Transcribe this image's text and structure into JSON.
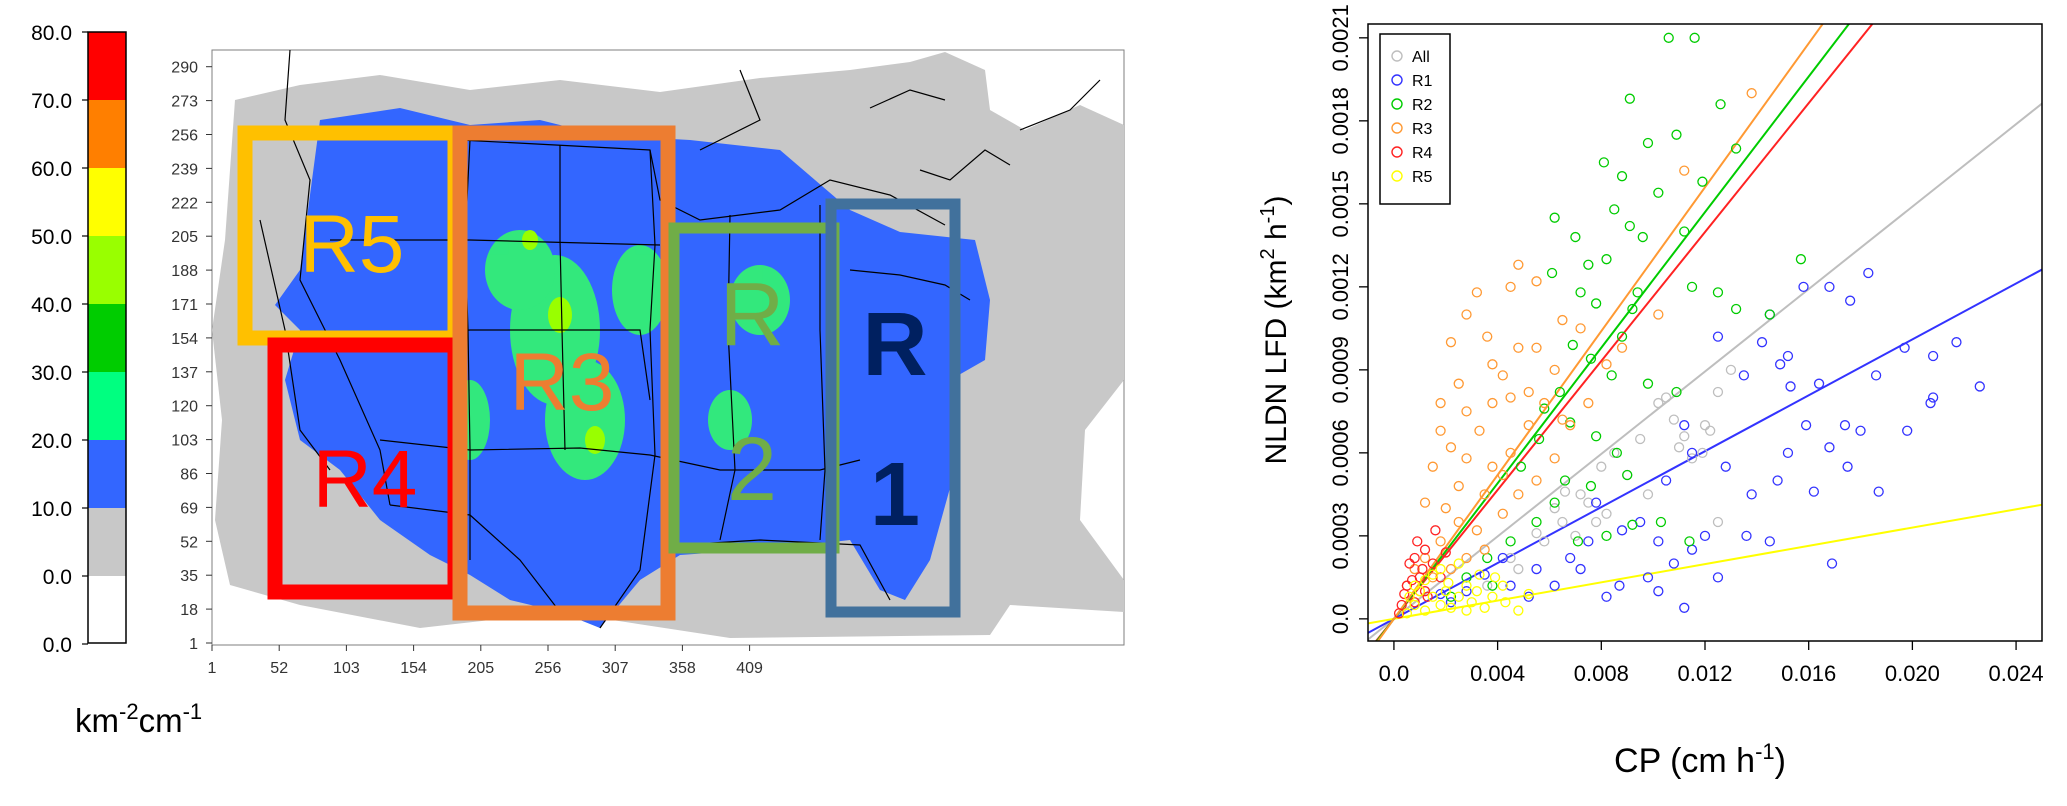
{
  "colorbar": {
    "ticks": [
      "80.0",
      "70.0",
      "60.0",
      "50.0",
      "40.0",
      "30.0",
      "20.0",
      "10.0",
      "0.0",
      "0.0"
    ],
    "colors": [
      "#ff0000",
      "#ff7f00",
      "#ffff00",
      "#99ff00",
      "#00cc00",
      "#00ff80",
      "#3366ff",
      "#c8c8c8",
      "#ffffff"
    ],
    "unit_label": "km-2cm-1",
    "unit_parts": {
      "base1": "km",
      "sup1": "-2",
      "base2": "cm",
      "sup2": "-1"
    }
  },
  "map": {
    "x_ticks": [
      "1",
      "52",
      "103",
      "154",
      "205",
      "256",
      "307",
      "358",
      "409"
    ],
    "y_ticks": [
      "1",
      "18",
      "35",
      "52",
      "69",
      "86",
      "103",
      "120",
      "137",
      "154",
      "171",
      "188",
      "205",
      "222",
      "239",
      "256",
      "273",
      "290"
    ],
    "regions": [
      {
        "label": "R5",
        "color": "#ffc000",
        "text_color": "#ffc000"
      },
      {
        "label": "R4",
        "color": "#ff0000",
        "text_color": "#ff0000"
      },
      {
        "label": "R3",
        "color": "#ed7d31",
        "text_color": "#ed7d31"
      },
      {
        "label": "R\n2",
        "color": "#70ad47",
        "text_color": "#70ad47"
      },
      {
        "label": "R\n1",
        "color": "#41719c",
        "text_color": "#002060"
      }
    ]
  },
  "chart_data": {
    "type": "scatter",
    "xlabel": "CP (cm h-1)",
    "ylabel": "NLDN LFD (km2 h-1)",
    "xlim": [
      -0.001,
      0.025
    ],
    "ylim": [
      -8e-05,
      0.00215
    ],
    "x_ticks": [
      "0.0",
      "0.004",
      "0.008",
      "0.012",
      "0.016",
      "0.020",
      "0.024"
    ],
    "y_ticks": [
      "0.0",
      "0.0003",
      "0.0006",
      "0.0009",
      "0.0012",
      "0.0015",
      "0.0018",
      "0.0021"
    ],
    "legend_position": "top-left",
    "series": [
      {
        "name": "All",
        "color": "#bebebe",
        "fit": [
          0.0,
          0.0745
        ],
        "points": [
          [
            0.008,
            0.00055
          ],
          [
            0.0095,
            0.00065
          ],
          [
            0.0105,
            0.0008
          ],
          [
            0.011,
            0.00062
          ],
          [
            0.012,
            0.0007
          ],
          [
            0.0115,
            0.00058
          ],
          [
            0.009,
            0.00052
          ],
          [
            0.0072,
            0.00045
          ],
          [
            0.0065,
            0.00035
          ],
          [
            0.0082,
            0.00038
          ],
          [
            0.0102,
            0.00078
          ],
          [
            0.0125,
            0.00082
          ],
          [
            0.0062,
            0.0004
          ],
          [
            0.0055,
            0.00031
          ],
          [
            0.0045,
            0.00022
          ],
          [
            0.007,
            0.0003
          ],
          [
            0.0108,
            0.00072
          ],
          [
            0.0122,
            0.00068
          ],
          [
            0.013,
            0.0009
          ],
          [
            0.0085,
            0.0006
          ],
          [
            0.0098,
            0.00045
          ],
          [
            0.0112,
            0.00066
          ],
          [
            0.0075,
            0.00042
          ],
          [
            0.0058,
            0.00028
          ],
          [
            0.0048,
            0.00018
          ],
          [
            0.0125,
            0.00035
          ],
          [
            0.0078,
            0.00035
          ],
          [
            0.0119,
            0.0006
          ],
          [
            0.0066,
            0.00046
          ],
          [
            0.0036,
            0.00012
          ]
        ]
      },
      {
        "name": "R1",
        "color": "#3333ff",
        "fit": [
          0.0,
          0.0505
        ],
        "points": [
          [
            0.0158,
            0.0012
          ],
          [
            0.0168,
            0.0012
          ],
          [
            0.0176,
            0.00115
          ],
          [
            0.0183,
            0.00125
          ],
          [
            0.0145,
            0.0011
          ],
          [
            0.0152,
            0.00095
          ],
          [
            0.0142,
            0.001
          ],
          [
            0.0125,
            0.00102
          ],
          [
            0.0135,
            0.00088
          ],
          [
            0.0153,
            0.00084
          ],
          [
            0.0164,
            0.00085
          ],
          [
            0.0174,
            0.0007
          ],
          [
            0.018,
            0.00068
          ],
          [
            0.0168,
            0.00062
          ],
          [
            0.0152,
            0.0006
          ],
          [
            0.0159,
            0.0007
          ],
          [
            0.0186,
            0.00088
          ],
          [
            0.0197,
            0.00098
          ],
          [
            0.0208,
            0.00095
          ],
          [
            0.0217,
            0.001
          ],
          [
            0.0226,
            0.00084
          ],
          [
            0.0207,
            0.00078
          ],
          [
            0.0208,
            0.0008
          ],
          [
            0.0198,
            0.00068
          ],
          [
            0.0175,
            0.00055
          ],
          [
            0.0187,
            0.00046
          ],
          [
            0.0169,
            0.0002
          ],
          [
            0.0162,
            0.00046
          ],
          [
            0.0148,
            0.0005
          ],
          [
            0.0138,
            0.00045
          ],
          [
            0.0128,
            0.00055
          ],
          [
            0.0115,
            0.0006
          ],
          [
            0.0105,
            0.0005
          ],
          [
            0.0095,
            0.00035
          ],
          [
            0.0102,
            0.00028
          ],
          [
            0.0115,
            0.00025
          ],
          [
            0.012,
            0.0003
          ],
          [
            0.0108,
            0.0002
          ],
          [
            0.0098,
            0.00015
          ],
          [
            0.0088,
            0.00032
          ],
          [
            0.0078,
            0.00042
          ],
          [
            0.0075,
            0.00028
          ],
          [
            0.0068,
            0.00022
          ],
          [
            0.0062,
            0.00012
          ],
          [
            0.0055,
            0.00018
          ],
          [
            0.0052,
            8e-05
          ],
          [
            0.0045,
            0.00012
          ],
          [
            0.0042,
            0.00022
          ],
          [
            0.0035,
            0.00016
          ],
          [
            0.0028,
            0.0001
          ],
          [
            0.0022,
            6e-05
          ],
          [
            0.0018,
            9e-05
          ],
          [
            0.0145,
            0.00028
          ],
          [
            0.0102,
            0.0001
          ],
          [
            0.0112,
            4e-05
          ],
          [
            0.0136,
            0.0003
          ],
          [
            0.0125,
            0.00015
          ],
          [
            0.0087,
            0.00012
          ],
          [
            0.0072,
            0.00018
          ],
          [
            0.0082,
            8e-05
          ],
          [
            0.0149,
            0.00092
          ],
          [
            0.0112,
            0.0007
          ]
        ]
      },
      {
        "name": "R2",
        "color": "#00cc00",
        "fit": [
          0.0,
          0.1225
        ],
        "points": [
          [
            0.0106,
            0.0021
          ],
          [
            0.0116,
            0.0021
          ],
          [
            0.0091,
            0.00188
          ],
          [
            0.0126,
            0.00186
          ],
          [
            0.0098,
            0.00172
          ],
          [
            0.0109,
            0.00175
          ],
          [
            0.0081,
            0.00165
          ],
          [
            0.0088,
            0.0016
          ],
          [
            0.0132,
            0.0017
          ],
          [
            0.0119,
            0.00158
          ],
          [
            0.0102,
            0.00154
          ],
          [
            0.0085,
            0.00148
          ],
          [
            0.0091,
            0.00142
          ],
          [
            0.0062,
            0.00145
          ],
          [
            0.007,
            0.00138
          ],
          [
            0.0112,
            0.0014
          ],
          [
            0.0096,
            0.00138
          ],
          [
            0.0082,
            0.0013
          ],
          [
            0.0075,
            0.00128
          ],
          [
            0.0061,
            0.00125
          ],
          [
            0.0072,
            0.00118
          ],
          [
            0.0078,
            0.00114
          ],
          [
            0.0092,
            0.00112
          ],
          [
            0.0115,
            0.0012
          ],
          [
            0.0125,
            0.00118
          ],
          [
            0.0088,
            0.00102
          ],
          [
            0.0069,
            0.00099
          ],
          [
            0.0076,
            0.00094
          ],
          [
            0.0084,
            0.00088
          ],
          [
            0.0098,
            0.00085
          ],
          [
            0.0109,
            0.00082
          ],
          [
            0.0058,
            0.00076
          ],
          [
            0.0068,
            0.00071
          ],
          [
            0.0078,
            0.00066
          ],
          [
            0.0086,
            0.0006
          ],
          [
            0.009,
            0.00052
          ],
          [
            0.0076,
            0.00048
          ],
          [
            0.0066,
            0.0005
          ],
          [
            0.0062,
            0.00042
          ],
          [
            0.0055,
            0.00035
          ],
          [
            0.0045,
            0.00028
          ],
          [
            0.0036,
            0.00022
          ],
          [
            0.0038,
            0.00012
          ],
          [
            0.0028,
            0.00015
          ],
          [
            0.0022,
            8e-05
          ],
          [
            0.0082,
            0.0003
          ],
          [
            0.0092,
            0.00034
          ],
          [
            0.0103,
            0.00035
          ],
          [
            0.0071,
            0.00028
          ],
          [
            0.0114,
            0.00028
          ],
          [
            0.0157,
            0.0013
          ],
          [
            0.0145,
            0.0011
          ],
          [
            0.0132,
            0.00112
          ],
          [
            0.0094,
            0.00118
          ],
          [
            0.0049,
            0.00055
          ],
          [
            0.0064,
            0.00082
          ],
          [
            0.0056,
            0.00065
          ]
        ]
      },
      {
        "name": "R3",
        "color": "#ff9933",
        "fit": [
          0.0,
          0.13
        ],
        "points": [
          [
            0.0022,
            0.001
          ],
          [
            0.0028,
            0.0011
          ],
          [
            0.0032,
            0.00118
          ],
          [
            0.0036,
            0.00102
          ],
          [
            0.0045,
            0.0012
          ],
          [
            0.0048,
            0.00128
          ],
          [
            0.0038,
            0.00092
          ],
          [
            0.0042,
            0.00088
          ],
          [
            0.0025,
            0.00085
          ],
          [
            0.0018,
            0.00078
          ],
          [
            0.0028,
            0.00075
          ],
          [
            0.0033,
            0.00068
          ],
          [
            0.0022,
            0.00062
          ],
          [
            0.0028,
            0.00058
          ],
          [
            0.0015,
            0.00055
          ],
          [
            0.0038,
            0.00055
          ],
          [
            0.0045,
            0.0006
          ],
          [
            0.0052,
            0.0007
          ],
          [
            0.0058,
            0.00078
          ],
          [
            0.0062,
            0.0009
          ],
          [
            0.0055,
            0.00098
          ],
          [
            0.0048,
            0.00098
          ],
          [
            0.0065,
            0.00108
          ],
          [
            0.0072,
            0.00105
          ],
          [
            0.0012,
            0.00042
          ],
          [
            0.002,
            0.0004
          ],
          [
            0.0025,
            0.00035
          ],
          [
            0.0032,
            0.00032
          ],
          [
            0.0018,
            0.00028
          ],
          [
            0.0012,
            0.00022
          ],
          [
            0.0008,
            0.00018
          ],
          [
            0.0005,
            0.00012
          ],
          [
            0.001,
            0.0001
          ],
          [
            0.0015,
            0.00015
          ],
          [
            0.0022,
            0.00018
          ],
          [
            0.0028,
            0.00022
          ],
          [
            0.0035,
            0.00025
          ],
          [
            0.0042,
            0.00038
          ],
          [
            0.0048,
            0.00045
          ],
          [
            0.0055,
            0.0005
          ],
          [
            0.0062,
            0.00058
          ],
          [
            0.0068,
            0.0007
          ],
          [
            0.0075,
            0.00078
          ],
          [
            0.0082,
            0.00092
          ],
          [
            0.0088,
            0.00098
          ],
          [
            0.0035,
            0.00045
          ],
          [
            0.0042,
            0.00052
          ],
          [
            0.0025,
            0.00048
          ],
          [
            0.0045,
            0.0008
          ],
          [
            0.0052,
            0.00082
          ],
          [
            0.0055,
            0.00122
          ],
          [
            0.0018,
            0.00068
          ],
          [
            0.0065,
            0.00072
          ],
          [
            0.0038,
            0.00078
          ],
          [
            0.0102,
            0.0011
          ],
          [
            0.0138,
            0.0019
          ],
          [
            0.0112,
            0.00162
          ]
        ]
      },
      {
        "name": "R4",
        "color": "#ff2222",
        "fit": [
          0.0,
          0.1165
        ],
        "points": [
          [
            0.0003,
            5e-05
          ],
          [
            0.0005,
            0.00012
          ],
          [
            0.0008,
            0.00022
          ],
          [
            0.001,
            0.00015
          ],
          [
            0.0012,
            0.0001
          ],
          [
            0.0008,
            6e-05
          ],
          [
            0.0006,
            0.0002
          ],
          [
            0.0012,
            0.00025
          ],
          [
            0.0015,
            0.0002
          ],
          [
            0.0018,
            0.00015
          ],
          [
            0.0013,
            8e-05
          ],
          [
            0.0004,
            9e-05
          ],
          [
            0.0009,
            0.00028
          ],
          [
            0.0016,
            0.00032
          ],
          [
            0.0007,
            0.00014
          ],
          [
            0.0002,
            2e-05
          ],
          [
            0.002,
            0.00024
          ],
          [
            0.0011,
            0.00018
          ]
        ]
      },
      {
        "name": "R5",
        "color": "#ffff00",
        "fit": [
          0.0,
          0.0165
        ],
        "points": [
          [
            0.0005,
            2e-05
          ],
          [
            0.0008,
            5e-05
          ],
          [
            0.001,
            0.0001
          ],
          [
            0.0012,
            3e-05
          ],
          [
            0.0015,
            8e-05
          ],
          [
            0.0018,
            5e-05
          ],
          [
            0.002,
            0.0001
          ],
          [
            0.0022,
            4e-05
          ],
          [
            0.0025,
            8e-05
          ],
          [
            0.0028,
            0.00012
          ],
          [
            0.003,
            6e-05
          ],
          [
            0.0032,
            0.0001
          ],
          [
            0.0035,
            4e-05
          ],
          [
            0.0038,
            8e-05
          ],
          [
            0.0042,
            0.00012
          ],
          [
            0.0048,
            3e-05
          ],
          [
            0.0052,
            9e-05
          ],
          [
            0.0012,
            0.00014
          ],
          [
            0.0018,
            0.00018
          ],
          [
            0.0025,
            0.0002
          ],
          [
            0.0008,
            0.00012
          ],
          [
            0.0015,
            0.00016
          ],
          [
            0.0028,
            3e-05
          ],
          [
            0.0033,
            0.00016
          ],
          [
            0.0021,
            0.00013
          ],
          [
            0.0006,
            8e-05
          ],
          [
            0.0043,
            6e-05
          ],
          [
            0.0039,
            0.00015
          ]
        ]
      }
    ]
  }
}
